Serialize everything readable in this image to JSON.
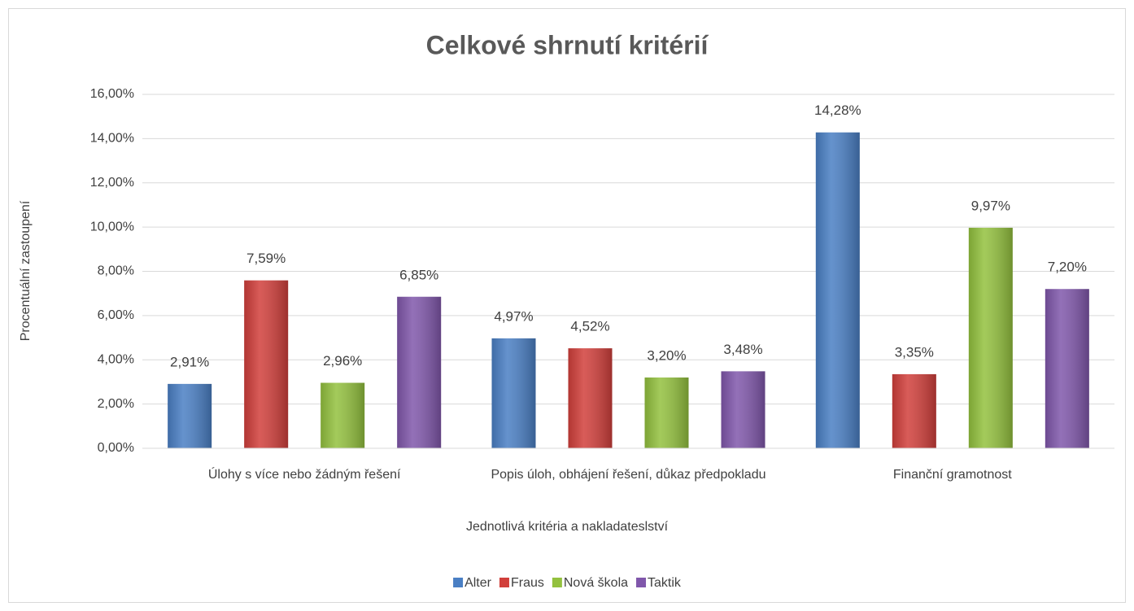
{
  "chart_data": {
    "type": "bar",
    "title": "Celkové shrnutí kritérií",
    "x_label": "Jednotlivá kritéria a nakladateslství",
    "y_label": "Procentuální zastoupení",
    "categories": [
      "Úlohy s více nebo žádným řešení",
      "Popis úloh, obhájení řešení, důkaz předpokladu",
      "Finanční gramotnost"
    ],
    "series": [
      {
        "name": "Alter",
        "color": "#4a7fc4",
        "values": [
          2.91,
          4.97,
          14.28
        ],
        "value_labels": [
          "2,91%",
          "4,97%",
          "14,28%"
        ]
      },
      {
        "name": "Fraus",
        "color": "#d13f3b",
        "values": [
          7.59,
          4.52,
          3.35
        ],
        "value_labels": [
          "7,59%",
          "4,52%",
          "3,35%"
        ]
      },
      {
        "name": "Nová škola",
        "color": "#93c13e",
        "values": [
          2.96,
          3.2,
          9.97
        ],
        "value_labels": [
          "2,96%",
          "3,20%",
          "9,97%"
        ]
      },
      {
        "name": "Taktik",
        "color": "#8057ab",
        "values": [
          6.85,
          3.48,
          7.2
        ],
        "value_labels": [
          "6,85%",
          "3,48%",
          "7,20%"
        ]
      }
    ],
    "ylim": [
      0,
      16
    ],
    "yticks": [
      {
        "value": 0,
        "label": "0,00%"
      },
      {
        "value": 2,
        "label": "2,00%"
      },
      {
        "value": 4,
        "label": "4,00%"
      },
      {
        "value": 6,
        "label": "6,00%"
      },
      {
        "value": 8,
        "label": "8,00%"
      },
      {
        "value": 10,
        "label": "10,00%"
      },
      {
        "value": 12,
        "label": "12,00%"
      },
      {
        "value": 14,
        "label": "14,00%"
      },
      {
        "value": 16,
        "label": "16,00%"
      }
    ],
    "grid": true,
    "legend": "bottom"
  }
}
